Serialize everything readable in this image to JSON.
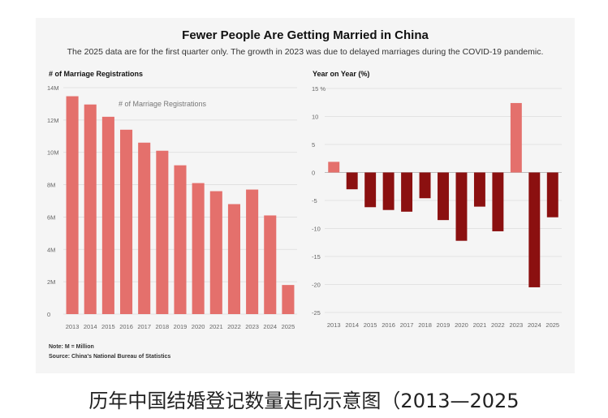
{
  "title": "Fewer People Are Getting Married in China",
  "subtitle": "The 2025 data are for the first quarter only. The growth in 2023 was due to delayed marriages during the COVID-19 pandemic.",
  "note": "Note: M = Million",
  "source": "Source: China's National Bureau of Statistics",
  "caption": "历年中国结婚登记数量走向示意图（2013—2025",
  "colors": {
    "light_bar": "#e4706c",
    "dark_bar": "#8b1010",
    "background": "#f5f5f5"
  },
  "chart_data": [
    {
      "type": "bar",
      "title": "# of Marriage Registrations",
      "legend_label": "# of Marriage Registrations",
      "legend_position": "top",
      "categories": [
        "2013",
        "2014",
        "2015",
        "2016",
        "2017",
        "2018",
        "2019",
        "2020",
        "2021",
        "2022",
        "2023",
        "2024",
        "2025"
      ],
      "values": [
        13.47,
        12.96,
        12.2,
        11.4,
        10.6,
        10.1,
        9.2,
        8.1,
        7.6,
        6.8,
        7.7,
        6.1,
        1.8
      ],
      "unit": "M",
      "yticks": [
        0,
        2,
        4,
        6,
        8,
        10,
        12,
        14
      ],
      "ytick_labels": [
        "0",
        "2M",
        "4M",
        "6M",
        "8M",
        "10M",
        "12M",
        "14M"
      ],
      "ylim": [
        0,
        14
      ],
      "grid": true
    },
    {
      "type": "bar",
      "title": "Year on Year (%)",
      "categories": [
        "2013",
        "2014",
        "2015",
        "2016",
        "2017",
        "2018",
        "2019",
        "2020",
        "2021",
        "2022",
        "2023",
        "2024",
        "2025"
      ],
      "values": [
        1.9,
        -3.0,
        -6.2,
        -6.7,
        -7.0,
        -4.6,
        -8.5,
        -12.2,
        -6.1,
        -10.5,
        12.4,
        -20.5,
        -8.0
      ],
      "highlight": [
        true,
        false,
        false,
        false,
        false,
        false,
        false,
        false,
        false,
        false,
        true,
        false,
        false
      ],
      "yticks": [
        15,
        10,
        5,
        0,
        -5,
        -10,
        -15,
        -20,
        -25
      ],
      "ytick_labels": [
        "15 %",
        "10",
        "5",
        "0",
        "-5",
        "-10",
        "-15",
        "-20",
        "-25"
      ],
      "ylim": [
        -25,
        15
      ],
      "grid": true
    }
  ]
}
